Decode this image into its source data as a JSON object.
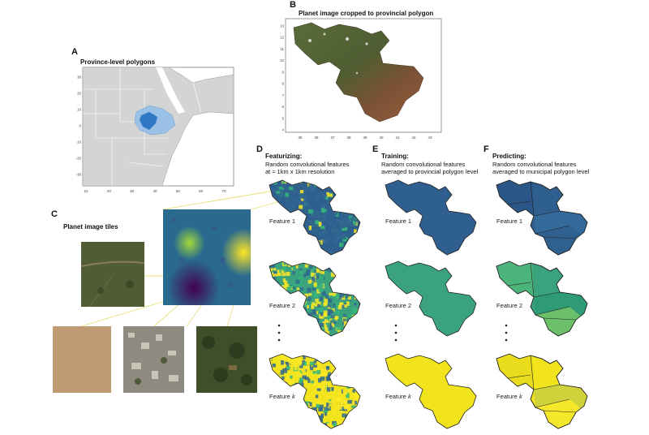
{
  "panels": {
    "a": {
      "letter": "A",
      "title": "Province-level polygons",
      "yticks": [
        "30",
        "20",
        "10",
        "0",
        "-10",
        "-20",
        "-30"
      ],
      "xticks": [
        "10",
        "20",
        "30",
        "40",
        "50",
        "60",
        "70"
      ]
    },
    "b": {
      "letter": "B",
      "title": "Planet image cropped to provincial polygon",
      "yticks": [
        "13",
        "12",
        "11",
        "10",
        "9",
        "8",
        "7",
        "6",
        "5",
        "4"
      ],
      "xticks": [
        "35",
        "36",
        "37",
        "38",
        "39",
        "40",
        "41",
        "42",
        "43"
      ]
    },
    "c": {
      "letter": "C",
      "title": "Planet image tiles"
    },
    "d": {
      "letter": "D",
      "title": "Featurizing:",
      "line1": "Random convolutional features",
      "line2": "at ≈ 1km x 1km resolution"
    },
    "e": {
      "letter": "E",
      "title": "Training:",
      "line1": "Random convolutional features",
      "line2": "averaged to provincial polygon level"
    },
    "f": {
      "letter": "F",
      "title": "Predicting:",
      "line1": "Random convolutional features",
      "line2": "averaged to municipal polygon level"
    }
  },
  "features": {
    "feature1": "Feature 1",
    "feature2": "Feature 2",
    "featurek_prefix": "Feature ",
    "featurek_var": "k"
  },
  "colors": {
    "land": "#d4d4d4",
    "highlight_light": "#9cc1e6",
    "highlight_dark": "#2f78c4",
    "feature1_fill": "#2f5f8f",
    "feature2_fill": "#3aa37e",
    "featurek_fill": "#f1e31c",
    "viridis_dark": "#440154",
    "viridis_blue": "#31688e",
    "viridis_green": "#35b779",
    "viridis_yellow": "#fde725",
    "connector": "#e8e07a"
  }
}
